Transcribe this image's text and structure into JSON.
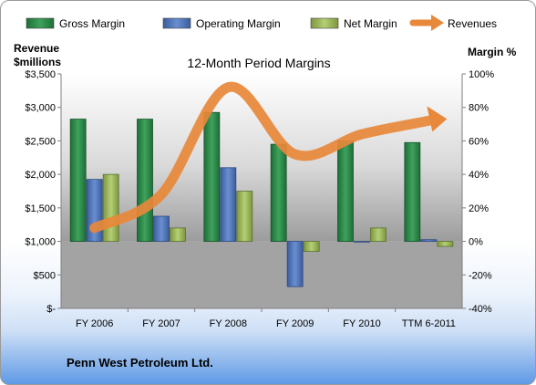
{
  "chart_data": {
    "type": "bar",
    "title": "12-Month Period Margins",
    "categories": [
      "FY 2006",
      "FY 2007",
      "FY 2008",
      "FY 2009",
      "FY 2010",
      "TTM 6-2011"
    ],
    "series": [
      {
        "name": "Gross Margin",
        "axis": "right",
        "values": [
          73,
          73,
          77,
          58,
          60,
          59
        ]
      },
      {
        "name": "Operating Margin",
        "axis": "right",
        "values": [
          37,
          15,
          44,
          -27,
          0,
          1
        ]
      },
      {
        "name": "Net Margin",
        "axis": "right",
        "values": [
          40,
          8,
          30,
          -6,
          8,
          -3
        ]
      },
      {
        "name": "Revenues",
        "axis": "left",
        "type": "line",
        "values": [
          1200,
          1700,
          3300,
          2300,
          2600,
          2800
        ]
      }
    ],
    "ylabel": "Revenue $millions",
    "y2label": "Margin %",
    "ylim": [
      0,
      3500
    ],
    "y2lim": [
      -40,
      100
    ],
    "yticks": [
      "$-",
      "$500",
      "$1,000",
      "$1,500",
      "$2,000",
      "$2,500",
      "$3,000",
      "$3,500"
    ],
    "y2ticks": [
      "-40%",
      "-20%",
      "0%",
      "20%",
      "40%",
      "60%",
      "80%",
      "100%"
    ],
    "legend_position": "top",
    "colors": {
      "Gross Margin": "#2e8b4a",
      "Operating Margin": "#4a70b8",
      "Net Margin": "#98b454",
      "Revenues": "#e8883a"
    }
  },
  "footer": {
    "company": "Penn West Petroleum Ltd."
  },
  "axis_titles": {
    "left_line1": "Revenue",
    "left_line2": "$millions",
    "right": "Margin %"
  }
}
